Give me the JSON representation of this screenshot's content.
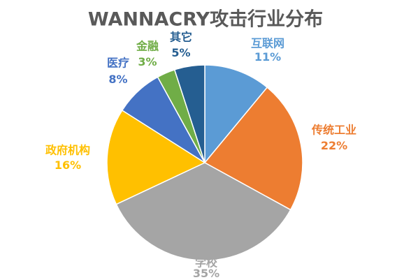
{
  "theme": {
    "background": "#FFFFFF",
    "title_color": "#595959",
    "slice_border": "#FFFFFF"
  },
  "chart_data": {
    "type": "pie",
    "title": "WANNACRY攻击行业分布",
    "unit": "%",
    "categories": [
      "互联网",
      "传统工业",
      "学校",
      "政府机构",
      "医疗",
      "金融",
      "其它"
    ],
    "values": [
      11,
      22,
      35,
      16,
      8,
      3,
      5
    ],
    "colors": [
      "#5B9BD5",
      "#ED7D31",
      "#A5A5A5",
      "#FFC000",
      "#4472C4",
      "#70AD47",
      "#255E91"
    ],
    "legend": "none"
  }
}
